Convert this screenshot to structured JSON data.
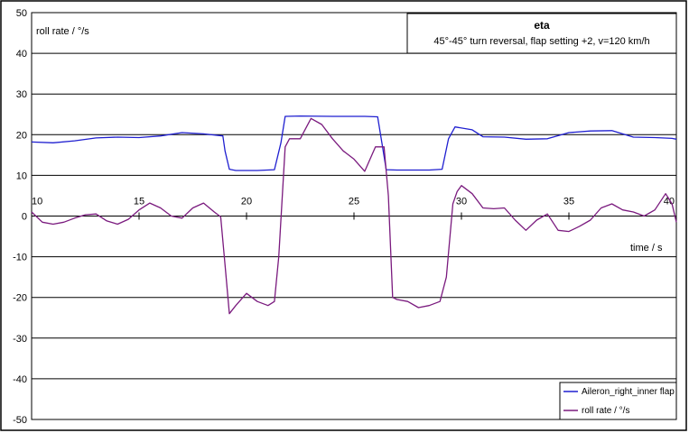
{
  "chart_data": {
    "type": "line",
    "title": "eta",
    "subtitle": "45°-45° turn reversal, flap setting +2, v=120 km/h",
    "ylabel": "roll rate / °/s",
    "xlabel": "time / s",
    "xlim": [
      10,
      40
    ],
    "ylim": [
      50,
      -50
    ],
    "y_inverted": true,
    "x_ticks": [
      10,
      15,
      20,
      25,
      30,
      35,
      40
    ],
    "y_ticks": [
      -50,
      -40,
      -30,
      -20,
      -10,
      0,
      10,
      20,
      30,
      40,
      50
    ],
    "grid": "horizontal",
    "legend_position": "bottom-right",
    "series": [
      {
        "name": "Aileron_right_inner flap",
        "color": "#1f1fd0",
        "points": [
          [
            10,
            18.2
          ],
          [
            11,
            18.0
          ],
          [
            12,
            18.5
          ],
          [
            13,
            19.2
          ],
          [
            14,
            19.4
          ],
          [
            15,
            19.3
          ],
          [
            16,
            19.7
          ],
          [
            17,
            20.5
          ],
          [
            18,
            20.2
          ],
          [
            18.9,
            19.7
          ],
          [
            19.0,
            16.0
          ],
          [
            19.2,
            11.5
          ],
          [
            19.5,
            11.2
          ],
          [
            20.5,
            11.2
          ],
          [
            21.3,
            11.4
          ],
          [
            21.6,
            18.0
          ],
          [
            21.8,
            24.5
          ],
          [
            22.5,
            24.6
          ],
          [
            24,
            24.5
          ],
          [
            25.5,
            24.5
          ],
          [
            26.1,
            24.4
          ],
          [
            26.3,
            18.0
          ],
          [
            26.5,
            11.4
          ],
          [
            27,
            11.3
          ],
          [
            28.5,
            11.3
          ],
          [
            29.1,
            11.5
          ],
          [
            29.4,
            19.0
          ],
          [
            29.7,
            21.9
          ],
          [
            30.5,
            21.2
          ],
          [
            31,
            19.5
          ],
          [
            32,
            19.4
          ],
          [
            33,
            18.9
          ],
          [
            34,
            19.0
          ],
          [
            35,
            20.5
          ],
          [
            36,
            20.9
          ],
          [
            37,
            21.0
          ],
          [
            38,
            19.4
          ],
          [
            39,
            19.3
          ],
          [
            39.8,
            19.1
          ],
          [
            40,
            18.9
          ]
        ]
      },
      {
        "name": "roll rate / °/s",
        "color": "#7a1a7e",
        "points": [
          [
            10,
            1.0
          ],
          [
            10.5,
            -1.5
          ],
          [
            11,
            -2.0
          ],
          [
            11.5,
            -1.5
          ],
          [
            12,
            -0.5
          ],
          [
            12.5,
            0.3
          ],
          [
            13,
            0.5
          ],
          [
            13.5,
            -1.2
          ],
          [
            14,
            -2.0
          ],
          [
            14.5,
            -0.8
          ],
          [
            15,
            1.5
          ],
          [
            15.5,
            3.2
          ],
          [
            16,
            2.0
          ],
          [
            16.5,
            0.0
          ],
          [
            17,
            -0.5
          ],
          [
            17.5,
            2.0
          ],
          [
            18,
            3.2
          ],
          [
            18.5,
            1.0
          ],
          [
            18.8,
            -0.2
          ],
          [
            19.0,
            -12.0
          ],
          [
            19.2,
            -24.0
          ],
          [
            19.5,
            -22.0
          ],
          [
            20,
            -19.0
          ],
          [
            20.5,
            -21.0
          ],
          [
            21,
            -22.0
          ],
          [
            21.3,
            -21.0
          ],
          [
            21.5,
            -10.0
          ],
          [
            21.8,
            17.0
          ],
          [
            22,
            19.0
          ],
          [
            22.5,
            19.0
          ],
          [
            23,
            24.0
          ],
          [
            23.5,
            22.5
          ],
          [
            24,
            19.0
          ],
          [
            24.5,
            16.0
          ],
          [
            25,
            14.0
          ],
          [
            25.5,
            11.0
          ],
          [
            26,
            17.0
          ],
          [
            26.4,
            17.0
          ],
          [
            26.6,
            5.0
          ],
          [
            26.8,
            -20.0
          ],
          [
            27,
            -20.5
          ],
          [
            27.5,
            -21.0
          ],
          [
            28,
            -22.5
          ],
          [
            28.5,
            -22.0
          ],
          [
            29,
            -21.0
          ],
          [
            29.3,
            -15.0
          ],
          [
            29.6,
            3.0
          ],
          [
            29.8,
            6.0
          ],
          [
            30,
            7.5
          ],
          [
            30.5,
            5.5
          ],
          [
            31,
            2.0
          ],
          [
            31.5,
            1.8
          ],
          [
            32,
            2.0
          ],
          [
            32.5,
            -1.0
          ],
          [
            33,
            -3.5
          ],
          [
            33.5,
            -1.0
          ],
          [
            34,
            0.5
          ],
          [
            34.5,
            -3.5
          ],
          [
            35,
            -3.8
          ],
          [
            35.5,
            -2.5
          ],
          [
            36,
            -1.0
          ],
          [
            36.5,
            2.0
          ],
          [
            37,
            3.0
          ],
          [
            37.5,
            1.5
          ],
          [
            38,
            1.0
          ],
          [
            38.5,
            0.0
          ],
          [
            39,
            1.5
          ],
          [
            39.5,
            5.5
          ],
          [
            39.8,
            3.0
          ],
          [
            40,
            -1.5
          ]
        ]
      }
    ]
  }
}
